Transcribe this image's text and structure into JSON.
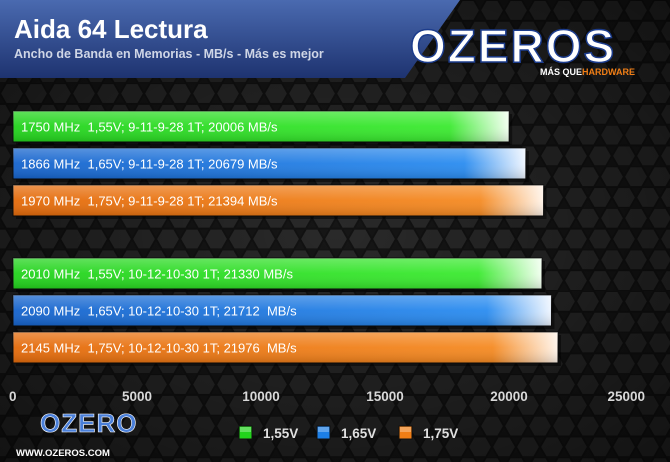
{
  "header": {
    "title": "Aida 64 Lectura",
    "subtitle": "Ancho de Banda en Memorias - MB/s - Más es mejor"
  },
  "branding": {
    "logo_main": "OZEROS",
    "logo_tagline_prefix": "MÁS QUE",
    "logo_tagline_suffix": "HARDWARE",
    "bottom_logo": "OZERO",
    "bottom_url": "WWW.OZEROS.COM"
  },
  "colors": {
    "green": "#22d31c",
    "blue": "#1d7fe6",
    "orange": "#f07e16"
  },
  "chart_data": {
    "type": "bar",
    "orientation": "horizontal",
    "title": "Aida 64 Lectura",
    "subtitle": "Ancho de Banda en Memorias - MB/s - Más es mejor",
    "xlim": [
      0,
      25000
    ],
    "xticks": [
      0,
      5000,
      10000,
      15000,
      20000,
      25000
    ],
    "grid": false,
    "legend": {
      "position": "bottom",
      "entries": [
        {
          "label": "1,55V",
          "color": "green"
        },
        {
          "label": "1,65V",
          "color": "blue"
        },
        {
          "label": "1,75V",
          "color": "orange"
        }
      ]
    },
    "bars": [
      {
        "label": "1750 MHz  1,55V; 9-11-9-28 1T; 20006 MB/s",
        "value": 20006,
        "color": "green"
      },
      {
        "label": "1866 MHz  1,65V; 9-11-9-28 1T; 20679 MB/s",
        "value": 20679,
        "color": "blue"
      },
      {
        "label": "1970 MHz  1,75V; 9-11-9-28 1T; 21394 MB/s",
        "value": 21394,
        "color": "orange"
      },
      {
        "label": "2010 MHz  1,55V; 10-12-10-30 1T; 21330 MB/s",
        "value": 21330,
        "color": "green"
      },
      {
        "label": "2090 MHz  1,65V; 10-12-10-30 1T; 21712  MB/s",
        "value": 21712,
        "color": "blue"
      },
      {
        "label": "2145 MHz  1,75V; 10-12-10-30 1T; 21976  MB/s",
        "value": 21976,
        "color": "orange"
      }
    ]
  }
}
